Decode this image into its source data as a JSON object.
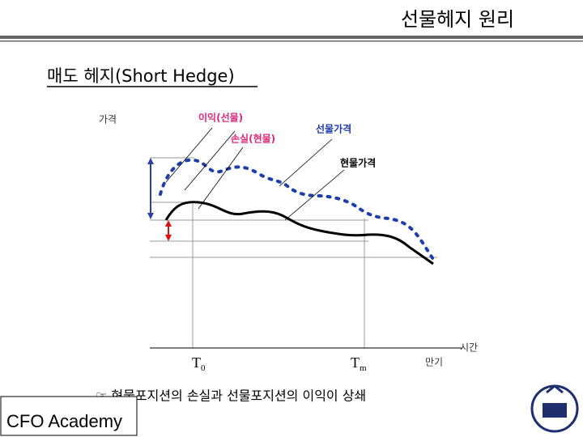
{
  "header": {
    "title": "선물헤지 원리"
  },
  "subtitle": "매도 헤지(Short Hedge)",
  "diagram": {
    "y_axis_label": "가격",
    "x_axis_label": "시간",
    "labels": {
      "gain": "이익(선물)",
      "loss": "손실(현물)",
      "futures_price": "선물가격",
      "spot_price": "현물가격"
    },
    "times": {
      "t0": {
        "base": "T",
        "sub": "0"
      },
      "tm": {
        "base": "T",
        "sub": "m"
      },
      "maturity": "만기"
    }
  },
  "note": "☞ 현물포지션의 손실과 선물포지션의 이익이 상쇄",
  "footer": {
    "brand": "CFO Academy"
  }
}
